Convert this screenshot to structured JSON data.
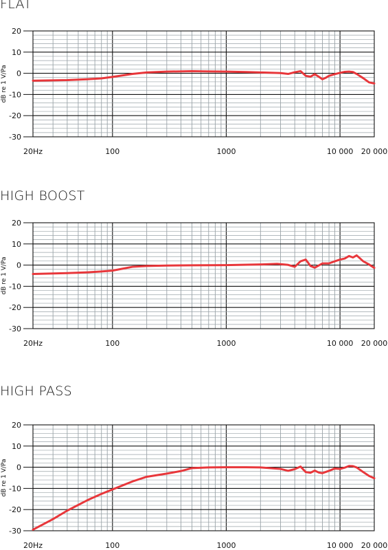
{
  "colors": {
    "curve": "#e8373b",
    "grid_major": "#111111",
    "grid_minor": "#9aa3a8",
    "text": "#111111"
  },
  "axes": {
    "ylabel": "dB re 1 V/Pa",
    "ylim": [
      -30,
      20
    ],
    "yticks": [
      20,
      10,
      0,
      -10,
      -20,
      -30
    ],
    "xlim": [
      20,
      20000
    ],
    "xscale": "log",
    "xticks": [
      {
        "value": 20,
        "label": "20Hz"
      },
      {
        "value": 100,
        "label": "100"
      },
      {
        "value": 1000,
        "label": "1000"
      },
      {
        "value": 10000,
        "label": "10 000"
      },
      {
        "value": 20000,
        "label": "20 000"
      }
    ]
  },
  "chart_data": [
    {
      "type": "line",
      "title": "FLAT",
      "ylabel": "dB re 1 V/Pa",
      "xscale": "log",
      "xlim": [
        20,
        20000
      ],
      "ylim": [
        -30,
        20
      ],
      "series": [
        {
          "x": [
            20,
            40,
            60,
            80,
            100,
            150,
            200,
            300,
            500,
            700,
            1000,
            1500,
            2000,
            3000,
            3500,
            4000,
            4500,
            5000,
            5500,
            6000,
            6500,
            7000,
            7500,
            8000,
            9000,
            10000,
            11000,
            12000,
            13000,
            14000,
            16000,
            18000,
            20000
          ],
          "y": [
            -3.5,
            -3.2,
            -2.8,
            -2.4,
            -1.7,
            -0.3,
            0.4,
            0.8,
            1.0,
            0.9,
            0.8,
            0.6,
            0.4,
            0.1,
            -0.3,
            0.5,
            1.0,
            -1.2,
            -1.6,
            -0.4,
            -1.6,
            -2.8,
            -2.1,
            -1.2,
            -0.4,
            0.2,
            0.7,
            0.8,
            0.6,
            -0.3,
            -2.3,
            -4.3,
            -4.8
          ]
        }
      ]
    },
    {
      "type": "line",
      "title": "HIGH BOOST",
      "ylabel": "dB re 1 V/Pa",
      "xscale": "log",
      "xlim": [
        20,
        20000
      ],
      "ylim": [
        -30,
        20
      ],
      "series": [
        {
          "x": [
            20,
            40,
            60,
            80,
            100,
            120,
            150,
            200,
            300,
            500,
            1000,
            2000,
            2800,
            3500,
            4000,
            4500,
            5000,
            5500,
            6000,
            7000,
            8000,
            9000,
            10000,
            11000,
            12000,
            13000,
            14000,
            16000,
            18000,
            20000
          ],
          "y": [
            -4.2,
            -3.8,
            -3.4,
            -3.0,
            -2.6,
            -1.8,
            -0.8,
            -0.4,
            -0.2,
            -0.1,
            0.0,
            0.3,
            0.6,
            0.1,
            -0.8,
            1.8,
            2.6,
            -0.4,
            -1.2,
            0.8,
            0.8,
            1.8,
            2.6,
            3.1,
            4.3,
            3.6,
            4.6,
            1.8,
            0.3,
            -1.3
          ]
        }
      ]
    },
    {
      "type": "line",
      "title": "HIGH PASS",
      "ylabel": "dB re 1 V/Pa",
      "xscale": "log",
      "xlim": [
        20,
        20000
      ],
      "ylim": [
        -30,
        20
      ],
      "series": [
        {
          "x": [
            20,
            30,
            40,
            60,
            80,
            100,
            150,
            200,
            300,
            400,
            500,
            700,
            1000,
            1500,
            2000,
            3000,
            3500,
            4000,
            4500,
            5000,
            5500,
            6000,
            6500,
            7000,
            8000,
            9000,
            10000,
            11000,
            12000,
            13000,
            14000,
            16000,
            18000,
            20000
          ],
          "y": [
            -29.5,
            -24.5,
            -20.5,
            -15.6,
            -12.6,
            -10.5,
            -6.7,
            -4.5,
            -3.0,
            -1.8,
            -0.4,
            -0.1,
            0.0,
            0.0,
            -0.1,
            -0.8,
            -1.7,
            -0.9,
            0.3,
            -2.3,
            -2.6,
            -1.6,
            -2.5,
            -2.8,
            -1.7,
            -0.6,
            -0.8,
            -0.2,
            0.6,
            0.5,
            -0.1,
            -2.3,
            -4.1,
            -5.2
          ]
        }
      ]
    }
  ]
}
